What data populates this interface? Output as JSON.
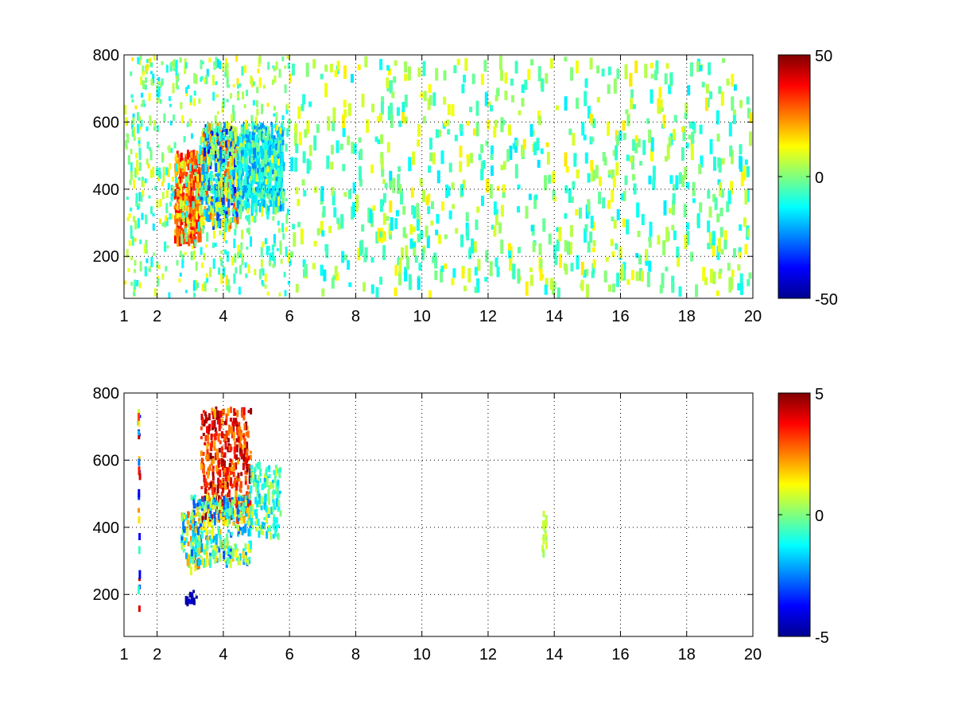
{
  "chart_data": [
    {
      "type": "heatmap",
      "title": "",
      "xlabel": "",
      "ylabel": "",
      "xlim": [
        1,
        20
      ],
      "ylim": [
        75,
        800
      ],
      "xticks": [
        1,
        2,
        4,
        6,
        8,
        10,
        12,
        14,
        16,
        18,
        20
      ],
      "xtick_labels": [
        "1",
        "2",
        "4",
        "6",
        "8",
        "10",
        "12",
        "14",
        "16",
        "18",
        "20"
      ],
      "yticks": [
        200,
        400,
        600,
        800
      ],
      "ytick_labels": [
        "200",
        "400",
        "600",
        "800"
      ],
      "grid": true,
      "colormap": "jet",
      "clim": [
        -50,
        50
      ],
      "colorbar_ticks": [
        -50,
        0,
        50
      ],
      "colorbar_labels": [
        "-50",
        "0",
        "50"
      ],
      "density": "dense",
      "clusters": [
        {
          "x_range": [
            2.5,
            3.3
          ],
          "y_range": [
            250,
            520
          ],
          "value_range": [
            15,
            40
          ]
        },
        {
          "x_range": [
            3.3,
            4.4
          ],
          "y_range": [
            300,
            600
          ],
          "value_range": [
            -40,
            30
          ]
        },
        {
          "x_range": [
            4.4,
            5.8
          ],
          "y_range": [
            350,
            600
          ],
          "value_range": [
            -25,
            0
          ]
        },
        {
          "x_range": [
            1.0,
            20.0
          ],
          "y_range": [
            75,
            800
          ],
          "value_range": [
            -15,
            15
          ]
        }
      ]
    },
    {
      "type": "heatmap",
      "title": "",
      "xlabel": "",
      "ylabel": "",
      "xlim": [
        1,
        20
      ],
      "ylim": [
        75,
        800
      ],
      "xticks": [
        1,
        2,
        4,
        6,
        8,
        10,
        12,
        14,
        16,
        18,
        20
      ],
      "xtick_labels": [
        "1",
        "2",
        "4",
        "6",
        "8",
        "10",
        "12",
        "14",
        "16",
        "18",
        "20"
      ],
      "yticks": [
        200,
        400,
        600,
        800
      ],
      "ytick_labels": [
        "200",
        "400",
        "600",
        "800"
      ],
      "grid": true,
      "colormap": "jet",
      "clim": [
        -5,
        5
      ],
      "colorbar_ticks": [
        -5,
        0,
        5
      ],
      "colorbar_labels": [
        "-5",
        "0",
        "5"
      ],
      "density": "sparse",
      "clusters": [
        {
          "x_range": [
            1.4,
            1.45
          ],
          "y_range": [
            140,
            760
          ],
          "value_range": [
            -5,
            5
          ]
        },
        {
          "x_range": [
            2.7,
            3.3
          ],
          "y_range": [
            280,
            450
          ],
          "value_range": [
            -3,
            3
          ]
        },
        {
          "x_range": [
            3.3,
            4.8
          ],
          "y_range": [
            430,
            760
          ],
          "value_range": [
            2,
            5
          ]
        },
        {
          "x_range": [
            3.0,
            4.8
          ],
          "y_range": [
            300,
            500
          ],
          "value_range": [
            -3,
            2
          ]
        },
        {
          "x_range": [
            4.8,
            5.7
          ],
          "y_range": [
            380,
            600
          ],
          "value_range": [
            -2,
            1
          ]
        },
        {
          "x_range": [
            2.8,
            3.2
          ],
          "y_range": [
            180,
            215
          ],
          "value_range": [
            -5,
            -4
          ]
        },
        {
          "x_range": [
            13.6,
            13.8
          ],
          "y_range": [
            330,
            450
          ],
          "value_range": [
            0,
            1
          ]
        }
      ]
    }
  ]
}
